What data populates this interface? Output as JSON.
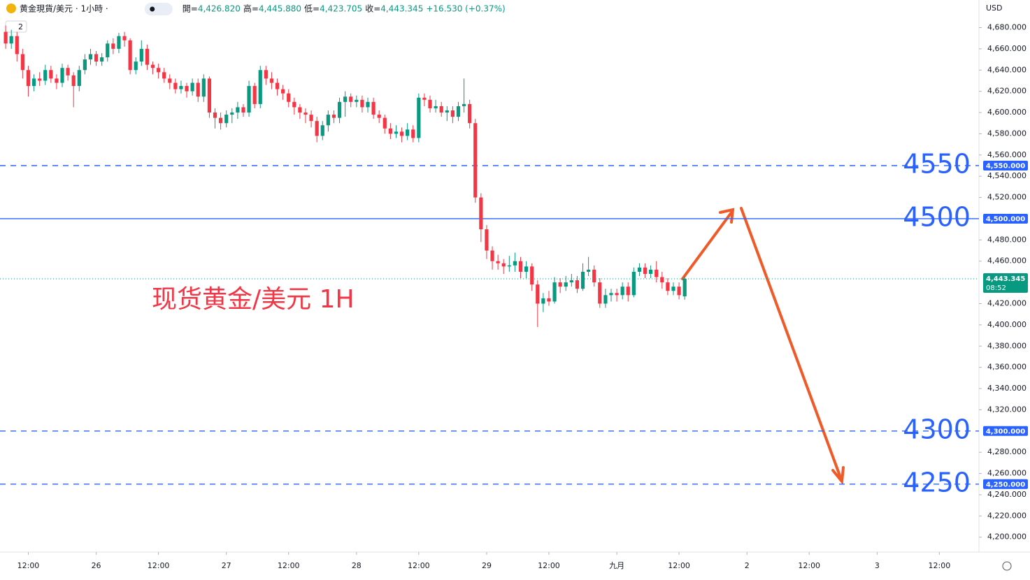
{
  "header": {
    "symbol": "黄金現貨/美元 · 1小時 ·",
    "indicator_count": "2",
    "ohlc": [
      {
        "key": "開=",
        "value": "4,426.820"
      },
      {
        "key": "高=",
        "value": "4,445.880"
      },
      {
        "key": "低=",
        "value": "4,423.705"
      },
      {
        "key": "收=",
        "value": "4,443.345"
      }
    ],
    "change": "+16.530 (+0.37%)",
    "currency": "USD"
  },
  "chart_data": {
    "type": "candlestick",
    "title": "现货黄金/美元 1H",
    "x": [
      -4,
      -3,
      -2,
      -1,
      0,
      1,
      2,
      3,
      4,
      5,
      6,
      7,
      8,
      9,
      10,
      11,
      12,
      13,
      14,
      15,
      16,
      17,
      18,
      19,
      20,
      21,
      22,
      23,
      24,
      25,
      26,
      27,
      28,
      29,
      30,
      31,
      32,
      33,
      34,
      35,
      36,
      37,
      38,
      39,
      40,
      41,
      42,
      43,
      44,
      45,
      46,
      47,
      48,
      49,
      50,
      51,
      52,
      53,
      54,
      55,
      56,
      57,
      58,
      59,
      60,
      61,
      62,
      63,
      64,
      65,
      66,
      67,
      68,
      69,
      70,
      71,
      72,
      73,
      74,
      75,
      76,
      77,
      78,
      79,
      80,
      81,
      82,
      83,
      84,
      85,
      86,
      87,
      88,
      89,
      90,
      91,
      92,
      93,
      94,
      95,
      96,
      97,
      98,
      99,
      100,
      101,
      102,
      103,
      104,
      105,
      106,
      107,
      108,
      109,
      110,
      111,
      112,
      113,
      114,
      115,
      116
    ],
    "open": [
      4676,
      4665,
      4672,
      4655,
      4640,
      4625,
      4632,
      4630,
      4640,
      4632,
      4628,
      4642,
      4635,
      4625,
      4640,
      4650,
      4655,
      4648,
      4652,
      4665,
      4660,
      4672,
      4668,
      4640,
      4648,
      4660,
      4645,
      4642,
      4638,
      4632,
      4628,
      4622,
      4625,
      4620,
      4628,
      4615,
      4632,
      4600,
      4595,
      4590,
      4598,
      4600,
      4605,
      4600,
      4625,
      4608,
      4640,
      4632,
      4628,
      4622,
      4618,
      4610,
      4605,
      4600,
      4598,
      4592,
      4578,
      4588,
      4598,
      4595,
      4610,
      4615,
      4610,
      4612,
      4605,
      4610,
      4598,
      4595,
      4585,
      4580,
      4582,
      4578,
      4584,
      4576,
      4614,
      4612,
      4604,
      4606,
      4600,
      4602,
      4596,
      4606,
      4608,
      4590,
      4520,
      4490,
      4470,
      4460,
      4458,
      4455,
      4456,
      4460,
      4450,
      4455,
      4438,
      4420,
      4425,
      4422,
      4440,
      4436,
      4440,
      4442,
      4434,
      4450,
      4452,
      4440,
      4420,
      4428,
      4430,
      4428,
      4436,
      4428,
      4450,
      4454,
      4448,
      4452,
      4445,
      4440,
      4432,
      4436,
      4426.82
    ],
    "high": [
      4682,
      4678,
      4676,
      4660,
      4644,
      4636,
      4638,
      4645,
      4644,
      4636,
      4646,
      4645,
      4638,
      4644,
      4655,
      4660,
      4658,
      4656,
      4668,
      4670,
      4675,
      4676,
      4670,
      4652,
      4668,
      4664,
      4648,
      4646,
      4642,
      4636,
      4632,
      4630,
      4628,
      4632,
      4632,
      4636,
      4634,
      4604,
      4600,
      4602,
      4604,
      4610,
      4608,
      4630,
      4628,
      4644,
      4644,
      4638,
      4632,
      4626,
      4622,
      4614,
      4608,
      4604,
      4602,
      4596,
      4592,
      4602,
      4602,
      4614,
      4620,
      4618,
      4616,
      4616,
      4614,
      4614,
      4602,
      4598,
      4590,
      4588,
      4586,
      4590,
      4588,
      4618,
      4618,
      4616,
      4612,
      4610,
      4606,
      4606,
      4610,
      4632,
      4612,
      4594,
      4524,
      4494,
      4474,
      4466,
      4462,
      4465,
      4468,
      4464,
      4460,
      4458,
      4442,
      4430,
      4432,
      4445,
      4444,
      4446,
      4448,
      4446,
      4458,
      4464,
      4456,
      4444,
      4434,
      4434,
      4434,
      4440,
      4440,
      4454,
      4458,
      4458,
      4456,
      4460,
      4450,
      4444,
      4440,
      4440,
      4445.88
    ],
    "low": [
      4660,
      4660,
      4648,
      4632,
      4615,
      4620,
      4625,
      4626,
      4628,
      4622,
      4624,
      4630,
      4605,
      4620,
      4636,
      4645,
      4644,
      4644,
      4648,
      4655,
      4656,
      4662,
      4636,
      4636,
      4644,
      4640,
      4636,
      4632,
      4628,
      4622,
      4618,
      4618,
      4614,
      4616,
      4610,
      4610,
      4595,
      4585,
      4584,
      4586,
      4590,
      4594,
      4596,
      4596,
      4604,
      4604,
      4626,
      4622,
      4616,
      4612,
      4605,
      4598,
      4594,
      4590,
      4586,
      4572,
      4574,
      4582,
      4590,
      4590,
      4596,
      4605,
      4605,
      4600,
      4600,
      4594,
      4590,
      4580,
      4575,
      4576,
      4572,
      4574,
      4572,
      4572,
      4606,
      4600,
      4600,
      4596,
      4592,
      4590,
      4592,
      4600,
      4585,
      4515,
      4478,
      4462,
      4452,
      4452,
      4448,
      4450,
      4450,
      4444,
      4444,
      4432,
      4398,
      4412,
      4418,
      4420,
      4430,
      4432,
      4436,
      4430,
      4432,
      4446,
      4436,
      4416,
      4416,
      4422,
      4422,
      4424,
      4422,
      4426,
      4446,
      4444,
      4444,
      4440,
      4434,
      4428,
      4428,
      4424,
      4423.705
    ],
    "close": [
      4665,
      4672,
      4655,
      4640,
      4625,
      4632,
      4630,
      4640,
      4632,
      4628,
      4642,
      4635,
      4625,
      4640,
      4650,
      4655,
      4648,
      4652,
      4665,
      4660,
      4672,
      4668,
      4640,
      4648,
      4660,
      4645,
      4642,
      4638,
      4632,
      4628,
      4622,
      4625,
      4620,
      4628,
      4615,
      4632,
      4600,
      4595,
      4590,
      4598,
      4600,
      4605,
      4600,
      4625,
      4608,
      4640,
      4632,
      4628,
      4622,
      4618,
      4610,
      4605,
      4600,
      4598,
      4592,
      4578,
      4588,
      4598,
      4595,
      4610,
      4615,
      4610,
      4612,
      4605,
      4610,
      4598,
      4595,
      4585,
      4580,
      4582,
      4578,
      4584,
      4576,
      4614,
      4612,
      4604,
      4606,
      4600,
      4602,
      4596,
      4606,
      4608,
      4590,
      4520,
      4490,
      4470,
      4460,
      4458,
      4455,
      4456,
      4460,
      4450,
      4455,
      4438,
      4420,
      4425,
      4422,
      4440,
      4436,
      4440,
      4442,
      4434,
      4450,
      4452,
      4440,
      4420,
      4428,
      4430,
      4428,
      4436,
      4428,
      4450,
      4454,
      4448,
      4452,
      4445,
      4440,
      4432,
      4436,
      4428,
      4443.345
    ],
    "up_color": "#089981",
    "down_color": "#f23645",
    "xlim": [
      -5,
      168
    ],
    "ylim": [
      4186,
      4706
    ],
    "xticks": [
      {
        "value": 0,
        "label": "12:00"
      },
      {
        "value": 12,
        "label": "26"
      },
      {
        "value": 23,
        "label": "12:00"
      },
      {
        "value": 35,
        "label": "27"
      },
      {
        "value": 46,
        "label": "12:00"
      },
      {
        "value": 58,
        "label": "28"
      },
      {
        "value": 69,
        "label": "12:00"
      },
      {
        "value": 81,
        "label": "29"
      },
      {
        "value": 92,
        "label": "12:00"
      },
      {
        "value": 104,
        "label": "九月"
      },
      {
        "value": 115,
        "label": "12:00"
      },
      {
        "value": 127,
        "label": "2"
      },
      {
        "value": 138,
        "label": "12:00"
      },
      {
        "value": 150,
        "label": "3"
      },
      {
        "value": 161,
        "label": "12:00"
      }
    ],
    "yticks": [
      {
        "value": 4680,
        "label": "4,680.000"
      },
      {
        "value": 4660,
        "label": "4,660.000"
      },
      {
        "value": 4640,
        "label": "4,640.000"
      },
      {
        "value": 4620,
        "label": "4,620.000"
      },
      {
        "value": 4600,
        "label": "4,600.000"
      },
      {
        "value": 4580,
        "label": "4,580.000"
      },
      {
        "value": 4560,
        "label": "4,560.000"
      },
      {
        "value": 4540,
        "label": "4,540.000"
      },
      {
        "value": 4520,
        "label": "4,520.000"
      },
      {
        "value": 4480,
        "label": "4,480.000"
      },
      {
        "value": 4460,
        "label": "4,460.000"
      },
      {
        "value": 4420,
        "label": "4,420.000"
      },
      {
        "value": 4400,
        "label": "4,400.000"
      },
      {
        "value": 4380,
        "label": "4,380.000"
      },
      {
        "value": 4360,
        "label": "4,360.000"
      },
      {
        "value": 4340,
        "label": "4,340.000"
      },
      {
        "value": 4320,
        "label": "4,320.000"
      },
      {
        "value": 4280,
        "label": "4,280.000"
      },
      {
        "value": 4260,
        "label": "4,260.000"
      },
      {
        "value": 4240,
        "label": "4,240.000"
      },
      {
        "value": 4220,
        "label": "4,220.000"
      },
      {
        "value": 4200,
        "label": "4,200.000"
      }
    ],
    "levels": [
      {
        "value": 4550,
        "label": "4550",
        "tag": "4,550.000",
        "style": "dashed"
      },
      {
        "value": 4500,
        "label": "4500",
        "tag": "4,500.000",
        "style": "solid"
      },
      {
        "value": 4300,
        "label": "4300",
        "tag": "4,300.000",
        "style": "dashed"
      },
      {
        "value": 4250,
        "label": "4250",
        "tag": "4,250.000",
        "style": "dashed"
      }
    ],
    "level_color": "#2962ff",
    "last_price": {
      "value": 4443.345,
      "label": "4,443.345",
      "countdown": "08:52"
    }
  }
}
